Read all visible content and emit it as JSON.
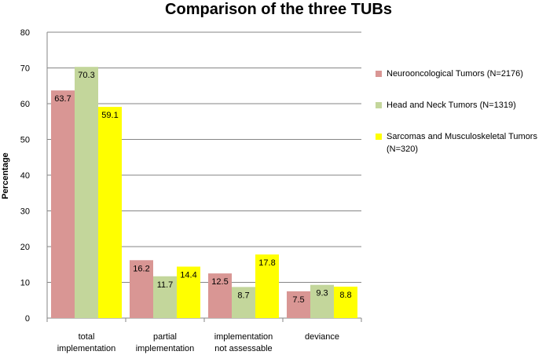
{
  "chart_data": {
    "type": "bar",
    "title": "Comparison of the three TUBs",
    "ylabel": "Percentage",
    "xlabel": "",
    "ylim": [
      0,
      80
    ],
    "yticks": [
      0,
      10,
      20,
      30,
      40,
      50,
      60,
      70,
      80
    ],
    "grid": true,
    "legend_position": "right",
    "categories": [
      [
        "total",
        "implementation"
      ],
      [
        "partial",
        "implementation"
      ],
      [
        "implementation",
        "not assessable"
      ],
      [
        "deviance"
      ]
    ],
    "series": [
      {
        "name": "Neurooncological Tumors (N=2176)",
        "color": "#d99694",
        "values": [
          63.7,
          16.2,
          12.5,
          7.5
        ]
      },
      {
        "name": "Head and  Neck Tumors (N=1319)",
        "color": "#c3d69b",
        "values": [
          70.3,
          11.7,
          8.7,
          9.3
        ]
      },
      {
        "name": "Sarcomas and  Musculoskeletal Tumors (N=320)",
        "color": "#ffff00",
        "values": [
          59.1,
          14.4,
          17.8,
          8.8
        ]
      }
    ]
  }
}
